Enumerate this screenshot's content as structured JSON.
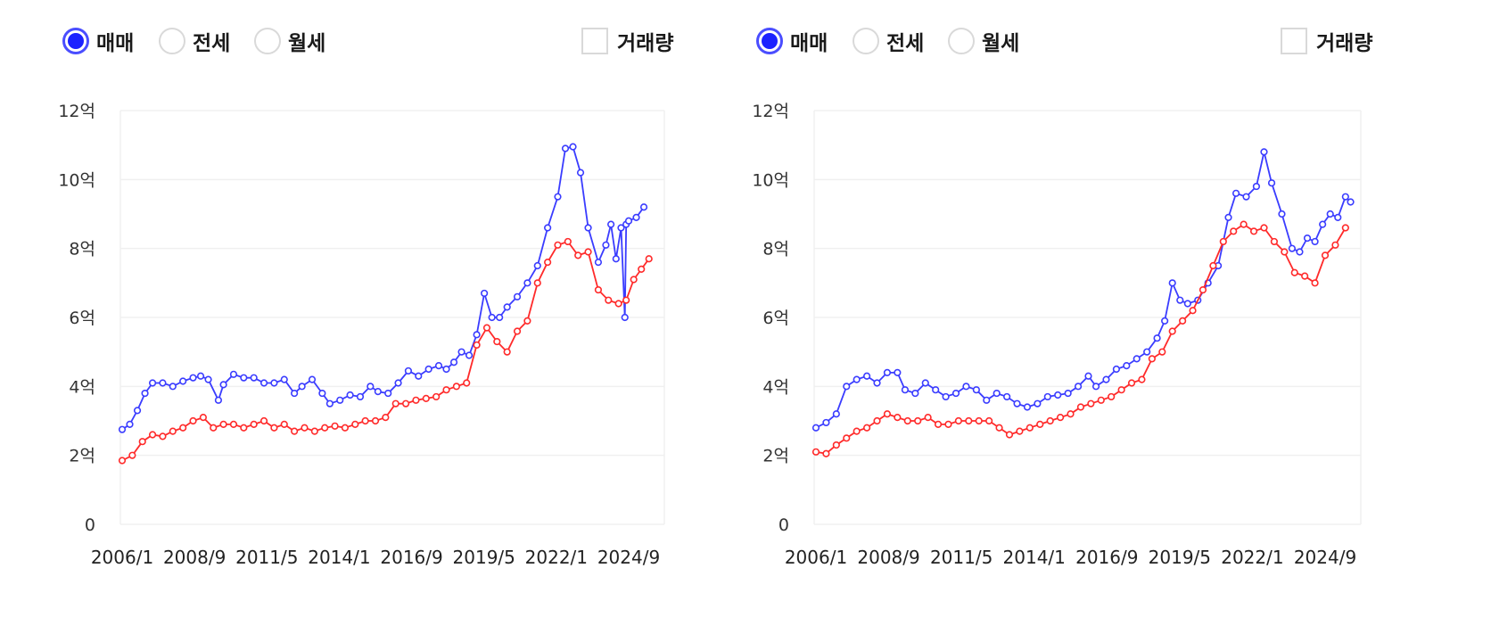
{
  "colors": {
    "buy": "#3a3cff",
    "jeonse": "#ff2a2a",
    "accent": "#1c22ff"
  },
  "panels": [
    {
      "id": "left",
      "radios": [
        {
          "label": "매매",
          "selected": true
        },
        {
          "label": "전세",
          "selected": false
        },
        {
          "label": "월세",
          "selected": false
        }
      ],
      "checkbox": {
        "label": "거래량",
        "checked": false
      },
      "chart_data": {
        "type": "line",
        "y_ticks": [
          "0",
          "2억",
          "4억",
          "6억",
          "8억",
          "10억",
          "12억"
        ],
        "ylim": [
          0,
          12
        ],
        "x_ticks": [
          "2006/1",
          "2008/9",
          "2011/5",
          "2014/1",
          "2016/9",
          "2019/5",
          "2022/1",
          "2024/9"
        ],
        "xlim": [
          2006.0,
          2026.0
        ],
        "grid": true,
        "series": [
          {
            "key": "buy",
            "points": [
              [
                2006.0,
                2.75
              ],
              [
                2006.3,
                2.9
              ],
              [
                2006.6,
                3.3
              ],
              [
                2006.9,
                3.8
              ],
              [
                2007.2,
                4.1
              ],
              [
                2007.6,
                4.1
              ],
              [
                2008.0,
                4.0
              ],
              [
                2008.4,
                4.15
              ],
              [
                2008.8,
                4.25
              ],
              [
                2009.1,
                4.3
              ],
              [
                2009.4,
                4.2
              ],
              [
                2009.8,
                3.6
              ],
              [
                2010.0,
                4.05
              ],
              [
                2010.4,
                4.35
              ],
              [
                2010.8,
                4.25
              ],
              [
                2011.2,
                4.25
              ],
              [
                2011.6,
                4.1
              ],
              [
                2012.0,
                4.1
              ],
              [
                2012.4,
                4.2
              ],
              [
                2012.8,
                3.8
              ],
              [
                2013.1,
                4.0
              ],
              [
                2013.5,
                4.2
              ],
              [
                2013.9,
                3.8
              ],
              [
                2014.2,
                3.5
              ],
              [
                2014.6,
                3.6
              ],
              [
                2015.0,
                3.75
              ],
              [
                2015.4,
                3.7
              ],
              [
                2015.8,
                4.0
              ],
              [
                2016.1,
                3.85
              ],
              [
                2016.5,
                3.8
              ],
              [
                2016.9,
                4.1
              ],
              [
                2017.3,
                4.45
              ],
              [
                2017.7,
                4.3
              ],
              [
                2018.1,
                4.5
              ],
              [
                2018.5,
                4.6
              ],
              [
                2018.8,
                4.5
              ],
              [
                2019.1,
                4.7
              ],
              [
                2019.4,
                5.0
              ],
              [
                2019.7,
                4.9
              ],
              [
                2020.0,
                5.5
              ],
              [
                2020.3,
                6.7
              ],
              [
                2020.6,
                6.0
              ],
              [
                2020.9,
                6.0
              ],
              [
                2021.2,
                6.3
              ],
              [
                2021.6,
                6.6
              ],
              [
                2022.0,
                7.0
              ],
              [
                2022.4,
                7.5
              ],
              [
                2022.8,
                8.6
              ],
              [
                2023.2,
                9.5
              ],
              [
                2023.5,
                10.9
              ],
              [
                2023.8,
                10.95
              ],
              [
                2024.1,
                10.2
              ],
              [
                2024.4,
                8.6
              ],
              [
                2024.8,
                7.6
              ],
              [
                2025.1,
                8.1
              ],
              [
                2025.3,
                8.7
              ],
              [
                2025.5,
                7.7
              ],
              [
                2025.7,
                8.6
              ],
              [
                2025.85,
                6.0
              ],
              [
                2025.9,
                8.7
              ],
              [
                2026.0,
                8.8
              ],
              [
                2026.3,
                8.9
              ],
              [
                2026.6,
                9.2
              ]
            ]
          },
          {
            "key": "jeonse",
            "points": [
              [
                2006.0,
                1.85
              ],
              [
                2006.4,
                2.0
              ],
              [
                2006.8,
                2.4
              ],
              [
                2007.2,
                2.6
              ],
              [
                2007.6,
                2.55
              ],
              [
                2008.0,
                2.7
              ],
              [
                2008.4,
                2.8
              ],
              [
                2008.8,
                3.0
              ],
              [
                2009.2,
                3.1
              ],
              [
                2009.6,
                2.8
              ],
              [
                2010.0,
                2.9
              ],
              [
                2010.4,
                2.9
              ],
              [
                2010.8,
                2.8
              ],
              [
                2011.2,
                2.9
              ],
              [
                2011.6,
                3.0
              ],
              [
                2012.0,
                2.8
              ],
              [
                2012.4,
                2.9
              ],
              [
                2012.8,
                2.7
              ],
              [
                2013.2,
                2.8
              ],
              [
                2013.6,
                2.7
              ],
              [
                2014.0,
                2.8
              ],
              [
                2014.4,
                2.85
              ],
              [
                2014.8,
                2.8
              ],
              [
                2015.2,
                2.9
              ],
              [
                2015.6,
                3.0
              ],
              [
                2016.0,
                3.0
              ],
              [
                2016.4,
                3.1
              ],
              [
                2016.8,
                3.5
              ],
              [
                2017.2,
                3.5
              ],
              [
                2017.6,
                3.6
              ],
              [
                2018.0,
                3.65
              ],
              [
                2018.4,
                3.7
              ],
              [
                2018.8,
                3.9
              ],
              [
                2019.2,
                4.0
              ],
              [
                2019.6,
                4.1
              ],
              [
                2020.0,
                5.2
              ],
              [
                2020.4,
                5.7
              ],
              [
                2020.8,
                5.3
              ],
              [
                2021.2,
                5.0
              ],
              [
                2021.6,
                5.6
              ],
              [
                2022.0,
                5.9
              ],
              [
                2022.4,
                7.0
              ],
              [
                2022.8,
                7.6
              ],
              [
                2023.2,
                8.1
              ],
              [
                2023.6,
                8.2
              ],
              [
                2024.0,
                7.8
              ],
              [
                2024.4,
                7.9
              ],
              [
                2024.8,
                6.8
              ],
              [
                2025.2,
                6.5
              ],
              [
                2025.6,
                6.4
              ],
              [
                2025.9,
                6.5
              ],
              [
                2026.2,
                7.1
              ],
              [
                2026.5,
                7.4
              ],
              [
                2026.8,
                7.7
              ]
            ]
          }
        ]
      }
    },
    {
      "id": "right",
      "radios": [
        {
          "label": "매매",
          "selected": true
        },
        {
          "label": "전세",
          "selected": false
        },
        {
          "label": "월세",
          "selected": false
        }
      ],
      "checkbox": {
        "label": "거래량",
        "checked": false
      },
      "chart_data": {
        "type": "line",
        "y_ticks": [
          "0",
          "2억",
          "4억",
          "6억",
          "8억",
          "10억",
          "12억"
        ],
        "ylim": [
          0,
          12
        ],
        "x_ticks": [
          "2006/1",
          "2008/9",
          "2011/5",
          "2014/1",
          "2016/9",
          "2019/5",
          "2022/1",
          "2024/9"
        ],
        "xlim": [
          2006.0,
          2026.0
        ],
        "grid": true,
        "series": [
          {
            "key": "buy",
            "points": [
              [
                2006.0,
                2.8
              ],
              [
                2006.4,
                2.95
              ],
              [
                2006.8,
                3.2
              ],
              [
                2007.2,
                4.0
              ],
              [
                2007.6,
                4.2
              ],
              [
                2008.0,
                4.3
              ],
              [
                2008.4,
                4.1
              ],
              [
                2008.8,
                4.4
              ],
              [
                2009.2,
                4.4
              ],
              [
                2009.5,
                3.9
              ],
              [
                2009.9,
                3.8
              ],
              [
                2010.3,
                4.1
              ],
              [
                2010.7,
                3.9
              ],
              [
                2011.1,
                3.7
              ],
              [
                2011.5,
                3.8
              ],
              [
                2011.9,
                4.0
              ],
              [
                2012.3,
                3.9
              ],
              [
                2012.7,
                3.6
              ],
              [
                2013.1,
                3.8
              ],
              [
                2013.5,
                3.7
              ],
              [
                2013.9,
                3.5
              ],
              [
                2014.3,
                3.4
              ],
              [
                2014.7,
                3.5
              ],
              [
                2015.1,
                3.7
              ],
              [
                2015.5,
                3.75
              ],
              [
                2015.9,
                3.8
              ],
              [
                2016.3,
                4.0
              ],
              [
                2016.7,
                4.3
              ],
              [
                2017.0,
                4.0
              ],
              [
                2017.4,
                4.2
              ],
              [
                2017.8,
                4.5
              ],
              [
                2018.2,
                4.6
              ],
              [
                2018.6,
                4.8
              ],
              [
                2019.0,
                5.0
              ],
              [
                2019.4,
                5.4
              ],
              [
                2019.7,
                5.9
              ],
              [
                2020.0,
                7.0
              ],
              [
                2020.3,
                6.5
              ],
              [
                2020.6,
                6.4
              ],
              [
                2021.0,
                6.5
              ],
              [
                2021.4,
                7.0
              ],
              [
                2021.8,
                7.5
              ],
              [
                2022.2,
                8.9
              ],
              [
                2022.5,
                9.6
              ],
              [
                2022.9,
                9.5
              ],
              [
                2023.3,
                9.8
              ],
              [
                2023.6,
                10.8
              ],
              [
                2023.9,
                9.9
              ],
              [
                2024.3,
                9.0
              ],
              [
                2024.7,
                8.0
              ],
              [
                2025.0,
                7.9
              ],
              [
                2025.3,
                8.3
              ],
              [
                2025.6,
                8.2
              ],
              [
                2025.9,
                8.7
              ],
              [
                2026.2,
                9.0
              ],
              [
                2026.5,
                8.9
              ],
              [
                2026.8,
                9.5
              ],
              [
                2027.0,
                9.35
              ]
            ]
          },
          {
            "key": "jeonse",
            "points": [
              [
                2006.0,
                2.1
              ],
              [
                2006.4,
                2.05
              ],
              [
                2006.8,
                2.3
              ],
              [
                2007.2,
                2.5
              ],
              [
                2007.6,
                2.7
              ],
              [
                2008.0,
                2.8
              ],
              [
                2008.4,
                3.0
              ],
              [
                2008.8,
                3.2
              ],
              [
                2009.2,
                3.1
              ],
              [
                2009.6,
                3.0
              ],
              [
                2010.0,
                3.0
              ],
              [
                2010.4,
                3.1
              ],
              [
                2010.8,
                2.9
              ],
              [
                2011.2,
                2.9
              ],
              [
                2011.6,
                3.0
              ],
              [
                2012.0,
                3.0
              ],
              [
                2012.4,
                3.0
              ],
              [
                2012.8,
                3.0
              ],
              [
                2013.2,
                2.8
              ],
              [
                2013.6,
                2.6
              ],
              [
                2014.0,
                2.7
              ],
              [
                2014.4,
                2.8
              ],
              [
                2014.8,
                2.9
              ],
              [
                2015.2,
                3.0
              ],
              [
                2015.6,
                3.1
              ],
              [
                2016.0,
                3.2
              ],
              [
                2016.4,
                3.4
              ],
              [
                2016.8,
                3.5
              ],
              [
                2017.2,
                3.6
              ],
              [
                2017.6,
                3.7
              ],
              [
                2018.0,
                3.9
              ],
              [
                2018.4,
                4.1
              ],
              [
                2018.8,
                4.2
              ],
              [
                2019.2,
                4.8
              ],
              [
                2019.6,
                5.0
              ],
              [
                2020.0,
                5.6
              ],
              [
                2020.4,
                5.9
              ],
              [
                2020.8,
                6.2
              ],
              [
                2021.2,
                6.8
              ],
              [
                2021.6,
                7.5
              ],
              [
                2022.0,
                8.2
              ],
              [
                2022.4,
                8.5
              ],
              [
                2022.8,
                8.7
              ],
              [
                2023.2,
                8.5
              ],
              [
                2023.6,
                8.6
              ],
              [
                2024.0,
                8.2
              ],
              [
                2024.4,
                7.9
              ],
              [
                2024.8,
                7.3
              ],
              [
                2025.2,
                7.2
              ],
              [
                2025.6,
                7.0
              ],
              [
                2026.0,
                7.8
              ],
              [
                2026.4,
                8.1
              ],
              [
                2026.8,
                8.6
              ]
            ]
          }
        ]
      }
    }
  ]
}
